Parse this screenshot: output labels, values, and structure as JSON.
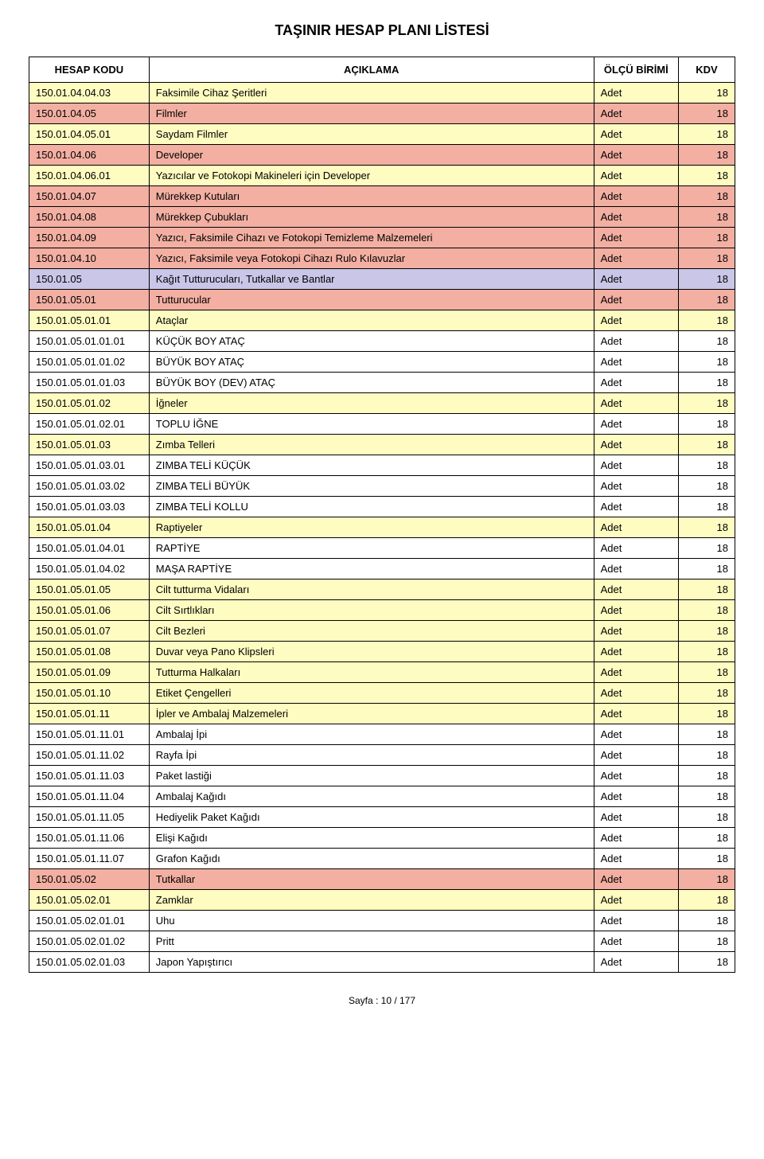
{
  "page": {
    "title": "TAŞINIR HESAP PLANI LİSTESİ",
    "footer": "Sayfa : 10 / 177"
  },
  "colors": {
    "yellow": "#fefcc1",
    "pink": "#f2afa2",
    "lavender": "#c9c6e8",
    "white": "#ffffff",
    "border": "#000000"
  },
  "columns": [
    {
      "key": "code",
      "label": "HESAP KODU"
    },
    {
      "key": "desc",
      "label": "AÇIKLAMA"
    },
    {
      "key": "unit",
      "label": "ÖLÇÜ BİRİMİ"
    },
    {
      "key": "kdv",
      "label": "KDV"
    }
  ],
  "rows": [
    {
      "code": "150.01.04.04.03",
      "desc": "Faksimile Cihaz Şeritleri",
      "unit": "Adet",
      "kdv": 18,
      "bg": "#fefcc1"
    },
    {
      "code": "150.01.04.05",
      "desc": "Filmler",
      "unit": "Adet",
      "kdv": 18,
      "bg": "#f2afa2"
    },
    {
      "code": "150.01.04.05.01",
      "desc": "Saydam Filmler",
      "unit": "Adet",
      "kdv": 18,
      "bg": "#fefcc1"
    },
    {
      "code": "150.01.04.06",
      "desc": "Developer",
      "unit": "Adet",
      "kdv": 18,
      "bg": "#f2afa2"
    },
    {
      "code": "150.01.04.06.01",
      "desc": "Yazıcılar ve Fotokopi Makineleri için Developer",
      "unit": "Adet",
      "kdv": 18,
      "bg": "#fefcc1"
    },
    {
      "code": "150.01.04.07",
      "desc": "Mürekkep Kutuları",
      "unit": "Adet",
      "kdv": 18,
      "bg": "#f2afa2"
    },
    {
      "code": "150.01.04.08",
      "desc": "Mürekkep Çubukları",
      "unit": "Adet",
      "kdv": 18,
      "bg": "#f2afa2"
    },
    {
      "code": "150.01.04.09",
      "desc": "Yazıcı, Faksimile Cihazı ve Fotokopi Temizleme Malzemeleri",
      "unit": "Adet",
      "kdv": 18,
      "bg": "#f2afa2"
    },
    {
      "code": "150.01.04.10",
      "desc": "Yazıcı, Faksimile veya Fotokopi Cihazı Rulo Kılavuzlar",
      "unit": "Adet",
      "kdv": 18,
      "bg": "#f2afa2"
    },
    {
      "code": "150.01.05",
      "desc": "Kağıt Tutturucuları, Tutkallar ve Bantlar",
      "unit": "Adet",
      "kdv": 18,
      "bg": "#c9c6e8"
    },
    {
      "code": "150.01.05.01",
      "desc": "Tutturucular",
      "unit": "Adet",
      "kdv": 18,
      "bg": "#f2afa2"
    },
    {
      "code": "150.01.05.01.01",
      "desc": "Ataçlar",
      "unit": "Adet",
      "kdv": 18,
      "bg": "#fefcc1"
    },
    {
      "code": "150.01.05.01.01.01",
      "desc": "KÜÇÜK BOY ATAÇ",
      "unit": "Adet",
      "kdv": 18,
      "bg": "#ffffff"
    },
    {
      "code": "150.01.05.01.01.02",
      "desc": "BÜYÜK BOY ATAÇ",
      "unit": "Adet",
      "kdv": 18,
      "bg": "#ffffff"
    },
    {
      "code": "150.01.05.01.01.03",
      "desc": "BÜYÜK BOY (DEV) ATAÇ",
      "unit": "Adet",
      "kdv": 18,
      "bg": "#ffffff"
    },
    {
      "code": "150.01.05.01.02",
      "desc": "İğneler",
      "unit": "Adet",
      "kdv": 18,
      "bg": "#fefcc1"
    },
    {
      "code": "150.01.05.01.02.01",
      "desc": "TOPLU İĞNE",
      "unit": "Adet",
      "kdv": 18,
      "bg": "#ffffff"
    },
    {
      "code": "150.01.05.01.03",
      "desc": "Zımba Telleri",
      "unit": "Adet",
      "kdv": 18,
      "bg": "#fefcc1"
    },
    {
      "code": "150.01.05.01.03.01",
      "desc": "ZIMBA TELİ KÜÇÜK",
      "unit": "Adet",
      "kdv": 18,
      "bg": "#ffffff"
    },
    {
      "code": "150.01.05.01.03.02",
      "desc": "ZIMBA TELİ BÜYÜK",
      "unit": "Adet",
      "kdv": 18,
      "bg": "#ffffff"
    },
    {
      "code": "150.01.05.01.03.03",
      "desc": "ZIMBA TELİ KOLLU",
      "unit": "Adet",
      "kdv": 18,
      "bg": "#ffffff"
    },
    {
      "code": "150.01.05.01.04",
      "desc": "Raptiyeler",
      "unit": "Adet",
      "kdv": 18,
      "bg": "#fefcc1"
    },
    {
      "code": "150.01.05.01.04.01",
      "desc": "RAPTİYE",
      "unit": "Adet",
      "kdv": 18,
      "bg": "#ffffff"
    },
    {
      "code": "150.01.05.01.04.02",
      "desc": "MAŞA RAPTİYE",
      "unit": "Adet",
      "kdv": 18,
      "bg": "#ffffff"
    },
    {
      "code": "150.01.05.01.05",
      "desc": "Cilt tutturma Vidaları",
      "unit": "Adet",
      "kdv": 18,
      "bg": "#fefcc1"
    },
    {
      "code": "150.01.05.01.06",
      "desc": "Cilt Sırtlıkları",
      "unit": "Adet",
      "kdv": 18,
      "bg": "#fefcc1"
    },
    {
      "code": "150.01.05.01.07",
      "desc": "Cilt Bezleri",
      "unit": "Adet",
      "kdv": 18,
      "bg": "#fefcc1"
    },
    {
      "code": "150.01.05.01.08",
      "desc": "Duvar veya Pano Klipsleri",
      "unit": "Adet",
      "kdv": 18,
      "bg": "#fefcc1"
    },
    {
      "code": "150.01.05.01.09",
      "desc": "Tutturma Halkaları",
      "unit": "Adet",
      "kdv": 18,
      "bg": "#fefcc1"
    },
    {
      "code": "150.01.05.01.10",
      "desc": "Etiket Çengelleri",
      "unit": "Adet",
      "kdv": 18,
      "bg": "#fefcc1"
    },
    {
      "code": "150.01.05.01.11",
      "desc": "İpler ve Ambalaj Malzemeleri",
      "unit": "Adet",
      "kdv": 18,
      "bg": "#fefcc1"
    },
    {
      "code": "150.01.05.01.11.01",
      "desc": "Ambalaj İpi",
      "unit": "Adet",
      "kdv": 18,
      "bg": "#ffffff"
    },
    {
      "code": "150.01.05.01.11.02",
      "desc": "Rayfa İpi",
      "unit": "Adet",
      "kdv": 18,
      "bg": "#ffffff"
    },
    {
      "code": "150.01.05.01.11.03",
      "desc": "Paket lastiği",
      "unit": "Adet",
      "kdv": 18,
      "bg": "#ffffff"
    },
    {
      "code": "150.01.05.01.11.04",
      "desc": "Ambalaj Kağıdı",
      "unit": "Adet",
      "kdv": 18,
      "bg": "#ffffff"
    },
    {
      "code": "150.01.05.01.11.05",
      "desc": "Hediyelik Paket Kağıdı",
      "unit": "Adet",
      "kdv": 18,
      "bg": "#ffffff"
    },
    {
      "code": "150.01.05.01.11.06",
      "desc": "Elişi Kağıdı",
      "unit": "Adet",
      "kdv": 18,
      "bg": "#ffffff"
    },
    {
      "code": "150.01.05.01.11.07",
      "desc": "Grafon Kağıdı",
      "unit": "Adet",
      "kdv": 18,
      "bg": "#ffffff"
    },
    {
      "code": "150.01.05.02",
      "desc": "Tutkallar",
      "unit": "Adet",
      "kdv": 18,
      "bg": "#f2afa2"
    },
    {
      "code": "150.01.05.02.01",
      "desc": "Zamklar",
      "unit": "Adet",
      "kdv": 18,
      "bg": "#fefcc1"
    },
    {
      "code": "150.01.05.02.01.01",
      "desc": "Uhu",
      "unit": "Adet",
      "kdv": 18,
      "bg": "#ffffff"
    },
    {
      "code": "150.01.05.02.01.02",
      "desc": "Pritt",
      "unit": "Adet",
      "kdv": 18,
      "bg": "#ffffff"
    },
    {
      "code": "150.01.05.02.01.03",
      "desc": "Japon Yapıştırıcı",
      "unit": "Adet",
      "kdv": 18,
      "bg": "#ffffff"
    }
  ]
}
